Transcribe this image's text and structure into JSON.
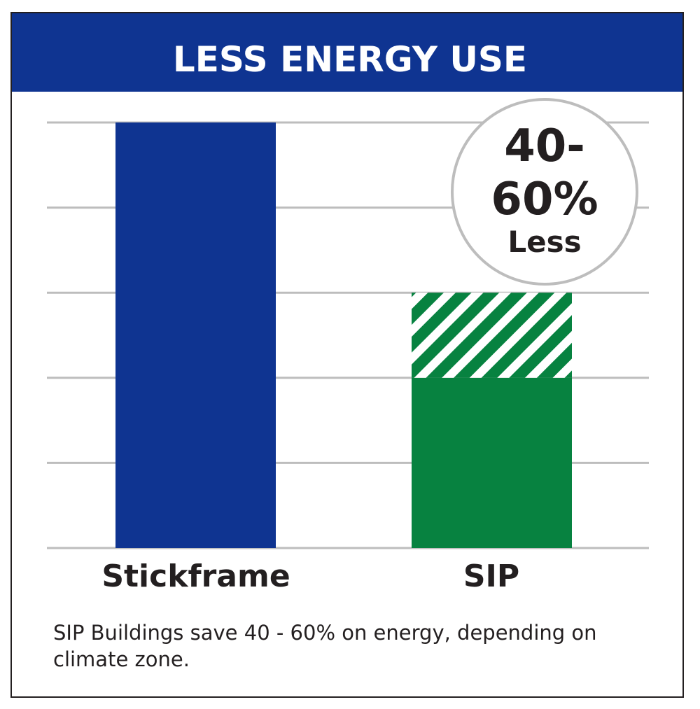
{
  "chart_data": {
    "type": "bar",
    "title": "LESS ENERGY USE",
    "categories": [
      "Stickframe",
      "SIP"
    ],
    "values": [
      100,
      40
    ],
    "ranges": [
      null,
      [
        40,
        60
      ]
    ],
    "ylim": [
      0,
      100
    ],
    "ygrid": [
      0,
      20,
      40,
      60,
      80,
      100
    ],
    "grid": true,
    "xlabel": "",
    "ylabel": "",
    "annotation": {
      "line1": "40-",
      "line2": "60%",
      "line3": "Less"
    },
    "caption": "SIP Buildings save 40 - 60% on energy, depending on climate zone.",
    "colors": {
      "header": "#0f3491",
      "stickframe": "#0f3491",
      "sip": "#078240",
      "grid": "#bdbdbd",
      "border": "#231f20"
    }
  }
}
